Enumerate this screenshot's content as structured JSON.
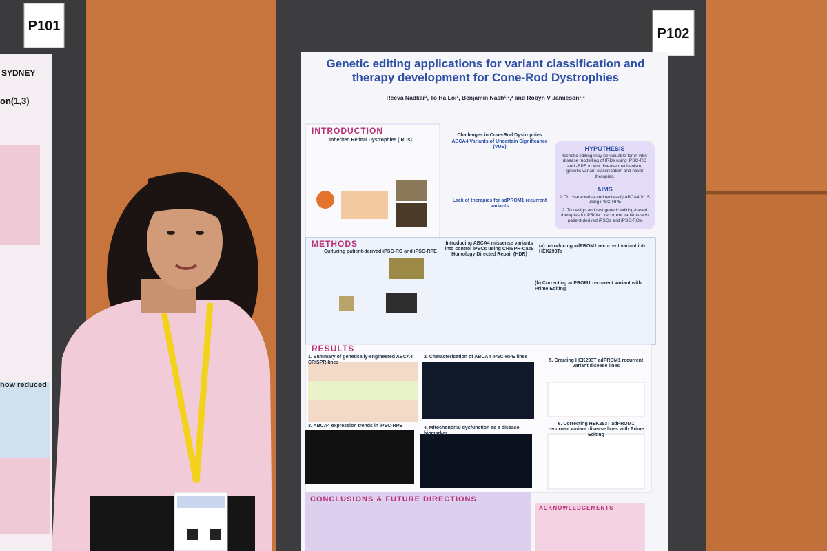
{
  "boards": {
    "left_label": "P101",
    "right_label": "P102"
  },
  "left_poster": {
    "institution": "SYDNEY",
    "fragment_1": "on(1,3)",
    "fragment_2": "how reduced"
  },
  "poster": {
    "title": "Genetic editing applications for variant classification and therapy development for Cone-Rod Dystrophies",
    "authors": "Reeva Nadkar¹, To Ha Loi¹, Benjamin Nash¹,²,³ and Robyn V Jamieson¹,³",
    "introduction": {
      "heading": "INTRODUCTION",
      "subheading": "Inherited Retinal Dystrophies (IRDs)",
      "challenges_title": "Challenges in Cone-Rod Dystrophies",
      "challenges_subtitle": "ABCA4 Variants of Uncertain Significance (VUS)",
      "lack_title": "Lack of therapies for adPROM1 recurrent variants"
    },
    "hypothesis": {
      "heading": "HYPOTHESIS",
      "text": "Genetic editing may be valuable for in vitro disease modelling of IRDs using iPSC-RO and -RPE to test disease mechanism, genetic variant classification and novel therapies.",
      "aims_heading": "AIMS",
      "aims": [
        "1. To characterise and reclassify ABCA4 VUS using iPSC-RPE",
        "2. To design and test genetic editing-based therapies for PROM1 recurrent variants with patient-derived iPSCs and iPSC-ROs"
      ]
    },
    "methods": {
      "heading": "METHODS",
      "sub_1": "Culturing patient-derived iPSC-RO and iPSC-RPE",
      "sub_2": "Introducing ABCA4 missense variants into control iPSCs using CRISPR-Cas9 Homology Directed Repair (HDR)",
      "sub_3": "(a) Introducing adPROM1 recurrent variant into HEK293Ts",
      "sub_4": "(b) Correcting adPROM1 recurrent variant with Prime Editing"
    },
    "results": {
      "heading": "RESULTS",
      "sub_1": "1. Summary of genetically-engineered ABCA4 CRISPR lines",
      "sub_2": "2. Characterisation of ABCA4 iPSC-RPE lines",
      "sub_3": "3. ABCA4 expression trends in iPSC-RPE",
      "sub_4": "4. Mitochondrial dysfunction as a disease biomarker",
      "sub_5": "5. Creating HEK293T adPROM1 recurrent variant disease lines",
      "sub_6": "6. Correcting HEK293T adPROM1 recurrent variant disease lines with Prime Editing"
    },
    "conclusions": {
      "heading": "CONCLUSIONS & FUTURE DIRECTIONS"
    },
    "acknowledgements": {
      "heading": "ACKNOWLEDGEMENTS"
    }
  }
}
